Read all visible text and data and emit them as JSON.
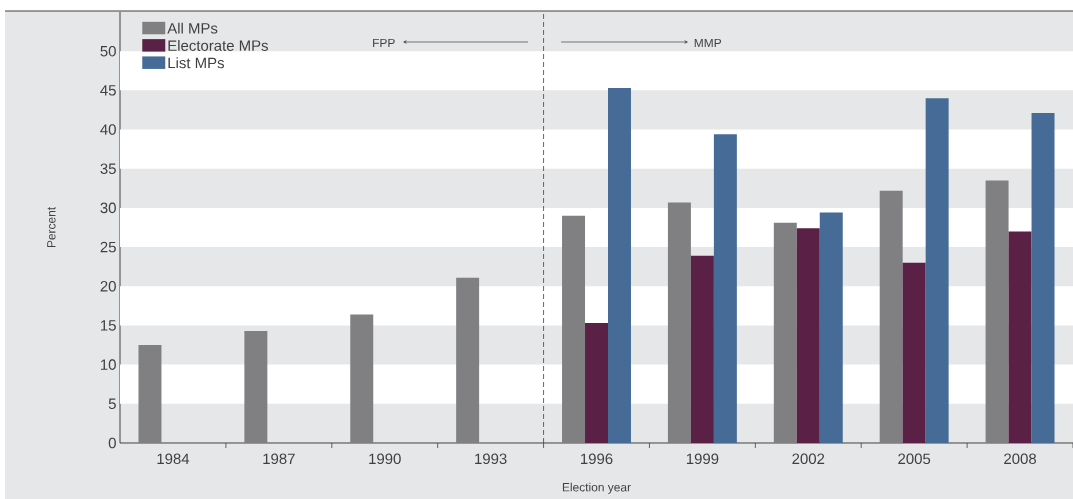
{
  "chart_data": {
    "type": "bar",
    "xlabel": "Election year",
    "ylabel": "Percent",
    "categories": [
      "1984",
      "1987",
      "1990",
      "1993",
      "1996",
      "1999",
      "2002",
      "2005",
      "2008"
    ],
    "series": [
      {
        "name": "All MPs",
        "color": "#808083",
        "values": [
          12.5,
          14.3,
          16.4,
          21.1,
          29.0,
          30.7,
          28.1,
          32.2,
          33.5
        ]
      },
      {
        "name": "Electorate MPs",
        "color": "#5a2046",
        "values": [
          null,
          null,
          null,
          null,
          15.3,
          23.9,
          27.4,
          23.0,
          27.0
        ]
      },
      {
        "name": "List MPs",
        "color": "#456b96",
        "values": [
          null,
          null,
          null,
          null,
          45.3,
          39.4,
          29.4,
          44.0,
          42.1
        ]
      }
    ],
    "ylim": [
      0,
      55
    ],
    "yticks": [
      0,
      5,
      10,
      15,
      20,
      25,
      30,
      35,
      40,
      45,
      50
    ],
    "legend": "top left",
    "bands": [
      {
        "axis": "y",
        "from": 5,
        "to": 10,
        "color": "#ffffff"
      },
      {
        "axis": "y",
        "from": 15,
        "to": 20,
        "color": "#ffffff"
      },
      {
        "axis": "y",
        "from": 25,
        "to": 30,
        "color": "#ffffff"
      },
      {
        "axis": "y",
        "from": 35,
        "to": 40,
        "color": "#ffffff"
      },
      {
        "axis": "y",
        "from": 45,
        "to": 50,
        "color": "#ffffff"
      }
    ],
    "annotations": [
      "FPP",
      "MMP"
    ]
  }
}
